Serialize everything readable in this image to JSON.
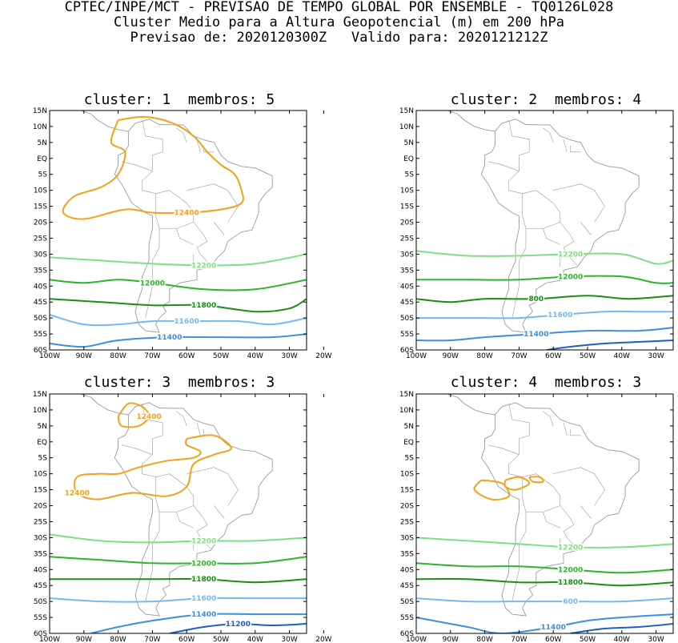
{
  "header": {
    "line1": "CPTEC/INPE/MCT - PREVISAO DE TEMPO GLOBAL POR ENSEMBLE - TQ0126L028",
    "line2": "Cluster Medio para a Altura Geopotencial (m) em 200 hPa",
    "line3": "Previsao de: 2020120300Z   Valido para: 2020121212Z"
  },
  "colors": {
    "12400": "#f5a01a",
    "12200": "#7ee07e",
    "12000": "#2bb52b",
    "11800": "#169016",
    "11600": "#78b8ee",
    "11400": "#3c8fdc",
    "11200": "#1b5fc2",
    "coast": "#9a9a9a"
  },
  "chart_data": [
    {
      "type": "contour",
      "title": "cluster: 1  membros: 5",
      "xlim": [
        -100,
        -25
      ],
      "ylim": [
        -60,
        15
      ],
      "xticks": [
        "100W",
        "90W",
        "80W",
        "70W",
        "60W",
        "50W",
        "40W",
        "30W",
        "20W"
      ],
      "yticks": [
        "15N",
        "10N",
        "5N",
        "EQ",
        "5S",
        "10S",
        "15S",
        "20S",
        "25S",
        "30S",
        "35S",
        "40S",
        "45S",
        "50S",
        "55S",
        "60S"
      ],
      "contours": [
        {
          "level": 12400,
          "label": "12400",
          "points": [
            [
              -80,
              12
            ],
            [
              -72,
              13
            ],
            [
              -64,
              11
            ],
            [
              -58,
              7
            ],
            [
              -54,
              2
            ],
            [
              -50,
              -2
            ],
            [
              -46,
              -5
            ],
            [
              -44,
              -10
            ],
            [
              -44,
              -14
            ],
            [
              -50,
              -16
            ],
            [
              -60,
              -17
            ],
            [
              -70,
              -17
            ],
            [
              -78,
              -16
            ],
            [
              -90,
              -19
            ],
            [
              -96,
              -17
            ],
            [
              -93,
              -12
            ],
            [
              -85,
              -9
            ],
            [
              -80,
              -5
            ],
            [
              -78,
              2
            ],
            [
              -82,
              5
            ],
            [
              -80,
              12
            ]
          ]
        },
        {
          "level": 12200,
          "label": "12200",
          "points": [
            [
              -100,
              -31
            ],
            [
              -85,
              -32
            ],
            [
              -70,
              -33
            ],
            [
              -55,
              -33.5
            ],
            [
              -40,
              -33
            ],
            [
              -25,
              -30
            ]
          ]
        },
        {
          "level": 12000,
          "label": "12000",
          "points": [
            [
              -100,
              -38
            ],
            [
              -90,
              -39
            ],
            [
              -80,
              -38
            ],
            [
              -70,
              -39
            ],
            [
              -55,
              -41
            ],
            [
              -40,
              -41
            ],
            [
              -25,
              -38
            ]
          ]
        },
        {
          "level": 11800,
          "label": "11800",
          "points": [
            [
              -100,
              -44
            ],
            [
              -85,
              -45
            ],
            [
              -70,
              -46
            ],
            [
              -55,
              -46
            ],
            [
              -40,
              -48
            ],
            [
              -30,
              -47
            ],
            [
              -25,
              -44
            ]
          ]
        },
        {
          "level": 11600,
          "label": "11600",
          "points": [
            [
              -100,
              -49
            ],
            [
              -90,
              -52
            ],
            [
              -80,
              -52
            ],
            [
              -70,
              -51
            ],
            [
              -60,
              -51
            ],
            [
              -45,
              -51
            ],
            [
              -35,
              -52
            ],
            [
              -25,
              -50
            ]
          ]
        },
        {
          "level": 11400,
          "label": "11400",
          "points": [
            [
              -100,
              -58
            ],
            [
              -90,
              -59
            ],
            [
              -80,
              -57
            ],
            [
              -65,
              -56
            ],
            [
              -50,
              -56
            ],
            [
              -35,
              -56
            ],
            [
              -25,
              -55
            ]
          ]
        }
      ]
    },
    {
      "type": "contour",
      "title": "cluster: 2  membros: 4",
      "xlim": [
        -100,
        -25
      ],
      "ylim": [
        -60,
        15
      ],
      "xticks": [
        "100W",
        "90W",
        "80W",
        "70W",
        "60W",
        "50W",
        "40W",
        "30W",
        "20W"
      ],
      "yticks": [
        "15N",
        "10N",
        "5N",
        "EQ",
        "5S",
        "10S",
        "15S",
        "20S",
        "25S",
        "30S",
        "35S",
        "40S",
        "45S",
        "50S",
        "55S",
        "60S"
      ],
      "contours": [
        {
          "level": 12200,
          "label": "12200",
          "points": [
            [
              -100,
              -29
            ],
            [
              -85,
              -30.5
            ],
            [
              -70,
              -30.5
            ],
            [
              -55,
              -30
            ],
            [
              -40,
              -30
            ],
            [
              -30,
              -33
            ],
            [
              -25,
              -32
            ]
          ]
        },
        {
          "level": 12000,
          "label": "12000",
          "points": [
            [
              -100,
              -38
            ],
            [
              -85,
              -38
            ],
            [
              -70,
              -38
            ],
            [
              -55,
              -37
            ],
            [
              -40,
              -37
            ],
            [
              -30,
              -39
            ],
            [
              -25,
              -39
            ]
          ]
        },
        {
          "level": 11800,
          "label": "800",
          "points": [
            [
              -100,
              -44
            ],
            [
              -90,
              -45
            ],
            [
              -80,
              -44
            ],
            [
              -65,
              -44
            ],
            [
              -50,
              -43
            ],
            [
              -38,
              -44
            ],
            [
              -25,
              -43
            ]
          ]
        },
        {
          "level": 11600,
          "label": "11600",
          "points": [
            [
              -100,
              -50
            ],
            [
              -90,
              -50
            ],
            [
              -80,
              -50
            ],
            [
              -70,
              -50
            ],
            [
              -58,
              -49
            ],
            [
              -45,
              -48
            ],
            [
              -35,
              -48
            ],
            [
              -25,
              -48
            ]
          ]
        },
        {
          "level": 11400,
          "label": "11400",
          "points": [
            [
              -100,
              -57
            ],
            [
              -90,
              -57
            ],
            [
              -80,
              -56
            ],
            [
              -65,
              -55
            ],
            [
              -50,
              -54
            ],
            [
              -35,
              -54
            ],
            [
              -25,
              -53
            ]
          ]
        },
        {
          "level": 11200,
          "label": "",
          "points": [
            [
              -62,
              -60
            ],
            [
              -55,
              -59
            ],
            [
              -45,
              -58
            ],
            [
              -35,
              -57.5
            ],
            [
              -25,
              -57
            ]
          ]
        }
      ]
    },
    {
      "type": "contour",
      "title": "cluster: 3  membros: 3",
      "xlim": [
        -100,
        -25
      ],
      "ylim": [
        -60,
        15
      ],
      "xticks": [
        "100W",
        "90W",
        "80W",
        "70W",
        "60W",
        "50W",
        "40W",
        "30W",
        "20W"
      ],
      "yticks": [
        "15N",
        "10N",
        "5N",
        "EQ",
        "5S",
        "10S",
        "15S",
        "20S",
        "25S",
        "30S",
        "35S",
        "40S",
        "45S",
        "50S",
        "55S",
        "60S"
      ],
      "contours": [
        {
          "level": 12400,
          "label": "12400",
          "points": [
            [
              -80,
              8
            ],
            [
              -77,
              12
            ],
            [
              -73,
              11
            ],
            [
              -71,
              8
            ],
            [
              -74,
              5
            ],
            [
              -79,
              5
            ],
            [
              -80,
              8
            ]
          ]
        },
        {
          "level": 12400,
          "label": "12400",
          "points": [
            [
              -60,
              1
            ],
            [
              -52,
              2
            ],
            [
              -47,
              -2
            ],
            [
              -52,
              -4
            ],
            [
              -58,
              -7
            ],
            [
              -60,
              -14
            ],
            [
              -66,
              -17
            ],
            [
              -76,
              -16
            ],
            [
              -86,
              -18
            ],
            [
              -92,
              -16
            ],
            [
              -92,
              -11
            ],
            [
              -86,
              -10
            ],
            [
              -80,
              -10
            ],
            [
              -74,
              -8
            ],
            [
              -66,
              -6
            ],
            [
              -58,
              -5
            ],
            [
              -56,
              -3
            ],
            [
              -60,
              -1
            ],
            [
              -60,
              1
            ]
          ]
        },
        {
          "level": 12200,
          "label": "12200",
          "points": [
            [
              -100,
              -29
            ],
            [
              -85,
              -31
            ],
            [
              -70,
              -31.5
            ],
            [
              -55,
              -31
            ],
            [
              -40,
              -31
            ],
            [
              -25,
              -30
            ]
          ]
        },
        {
          "level": 12000,
          "label": "12000",
          "points": [
            [
              -100,
              -36
            ],
            [
              -85,
              -37
            ],
            [
              -70,
              -38
            ],
            [
              -55,
              -38
            ],
            [
              -40,
              -38
            ],
            [
              -25,
              -36
            ]
          ]
        },
        {
          "level": 11800,
          "label": "11800",
          "points": [
            [
              -100,
              -43
            ],
            [
              -85,
              -43
            ],
            [
              -70,
              -43
            ],
            [
              -55,
              -43
            ],
            [
              -40,
              -44
            ],
            [
              -25,
              -43
            ]
          ]
        },
        {
          "level": 11600,
          "label": "11600",
          "points": [
            [
              -100,
              -49
            ],
            [
              -85,
              -50
            ],
            [
              -70,
              -50
            ],
            [
              -55,
              -49
            ],
            [
              -40,
              -49
            ],
            [
              -25,
              -49
            ]
          ]
        },
        {
          "level": 11400,
          "label": "11400",
          "points": [
            [
              -88,
              -60
            ],
            [
              -80,
              -58
            ],
            [
              -70,
              -56
            ],
            [
              -55,
              -54
            ],
            [
              -40,
              -54
            ],
            [
              -25,
              -54
            ]
          ]
        },
        {
          "level": 11200,
          "label": "11200",
          "points": [
            [
              -65,
              -60
            ],
            [
              -55,
              -58
            ],
            [
              -45,
              -57
            ],
            [
              -35,
              -57.5
            ],
            [
              -25,
              -57
            ]
          ]
        }
      ]
    },
    {
      "type": "contour",
      "title": "cluster: 4  membros: 3",
      "xlim": [
        -100,
        -25
      ],
      "ylim": [
        -60,
        15
      ],
      "xticks": [
        "100W",
        "90W",
        "80W",
        "70W",
        "60W",
        "50W",
        "40W",
        "30W",
        "20W"
      ],
      "yticks": [
        "15N",
        "10N",
        "5N",
        "EQ",
        "5S",
        "10S",
        "15S",
        "20S",
        "25S",
        "30S",
        "35S",
        "40S",
        "45S",
        "50S",
        "55S",
        "60S"
      ],
      "contours": [
        {
          "level": 12400,
          "label": "",
          "points": [
            [
              -81,
              -12
            ],
            [
              -75,
              -13
            ],
            [
              -73,
              -17
            ],
            [
              -78,
              -18
            ],
            [
              -83,
              -15
            ],
            [
              -81,
              -12
            ]
          ]
        },
        {
          "level": 12400,
          "label": "",
          "points": [
            [
              -74,
              -12
            ],
            [
              -70,
              -11
            ],
            [
              -67,
              -13
            ],
            [
              -71,
              -15
            ],
            [
              -74,
              -14
            ],
            [
              -74,
              -12
            ]
          ]
        },
        {
          "level": 12400,
          "label": "",
          "points": [
            [
              -67,
              -11
            ],
            [
              -64,
              -11
            ],
            [
              -63,
              -12.5
            ],
            [
              -66,
              -12.5
            ],
            [
              -67,
              -11
            ]
          ]
        },
        {
          "level": 12200,
          "label": "12200",
          "points": [
            [
              -100,
              -30
            ],
            [
              -85,
              -31
            ],
            [
              -70,
              -32
            ],
            [
              -55,
              -33
            ],
            [
              -40,
              -33
            ],
            [
              -25,
              -32
            ]
          ]
        },
        {
          "level": 12000,
          "label": "12000",
          "points": [
            [
              -100,
              -38
            ],
            [
              -85,
              -39
            ],
            [
              -70,
              -39
            ],
            [
              -55,
              -40
            ],
            [
              -40,
              -41
            ],
            [
              -25,
              -40
            ]
          ]
        },
        {
          "level": 11800,
          "label": "11800",
          "points": [
            [
              -100,
              -43
            ],
            [
              -85,
              -43
            ],
            [
              -70,
              -44
            ],
            [
              -55,
              -44
            ],
            [
              -40,
              -45
            ],
            [
              -25,
              -44
            ]
          ]
        },
        {
          "level": 11600,
          "label": "600",
          "points": [
            [
              -100,
              -49
            ],
            [
              -85,
              -50
            ],
            [
              -70,
              -50
            ],
            [
              -55,
              -50
            ],
            [
              -40,
              -50
            ],
            [
              -25,
              -49
            ]
          ]
        },
        {
          "level": 11400,
          "label": "11400",
          "points": [
            [
              -100,
              -55
            ],
            [
              -85,
              -58
            ],
            [
              -75,
              -60
            ],
            [
              -60,
              -58
            ],
            [
              -50,
              -56
            ],
            [
              -40,
              -55
            ],
            [
              -25,
              -54
            ]
          ]
        },
        {
          "level": 11200,
          "label": "",
          "points": [
            [
              -55,
              -60
            ],
            [
              -45,
              -58.5
            ],
            [
              -35,
              -58
            ],
            [
              -25,
              -57
            ]
          ]
        }
      ]
    }
  ]
}
